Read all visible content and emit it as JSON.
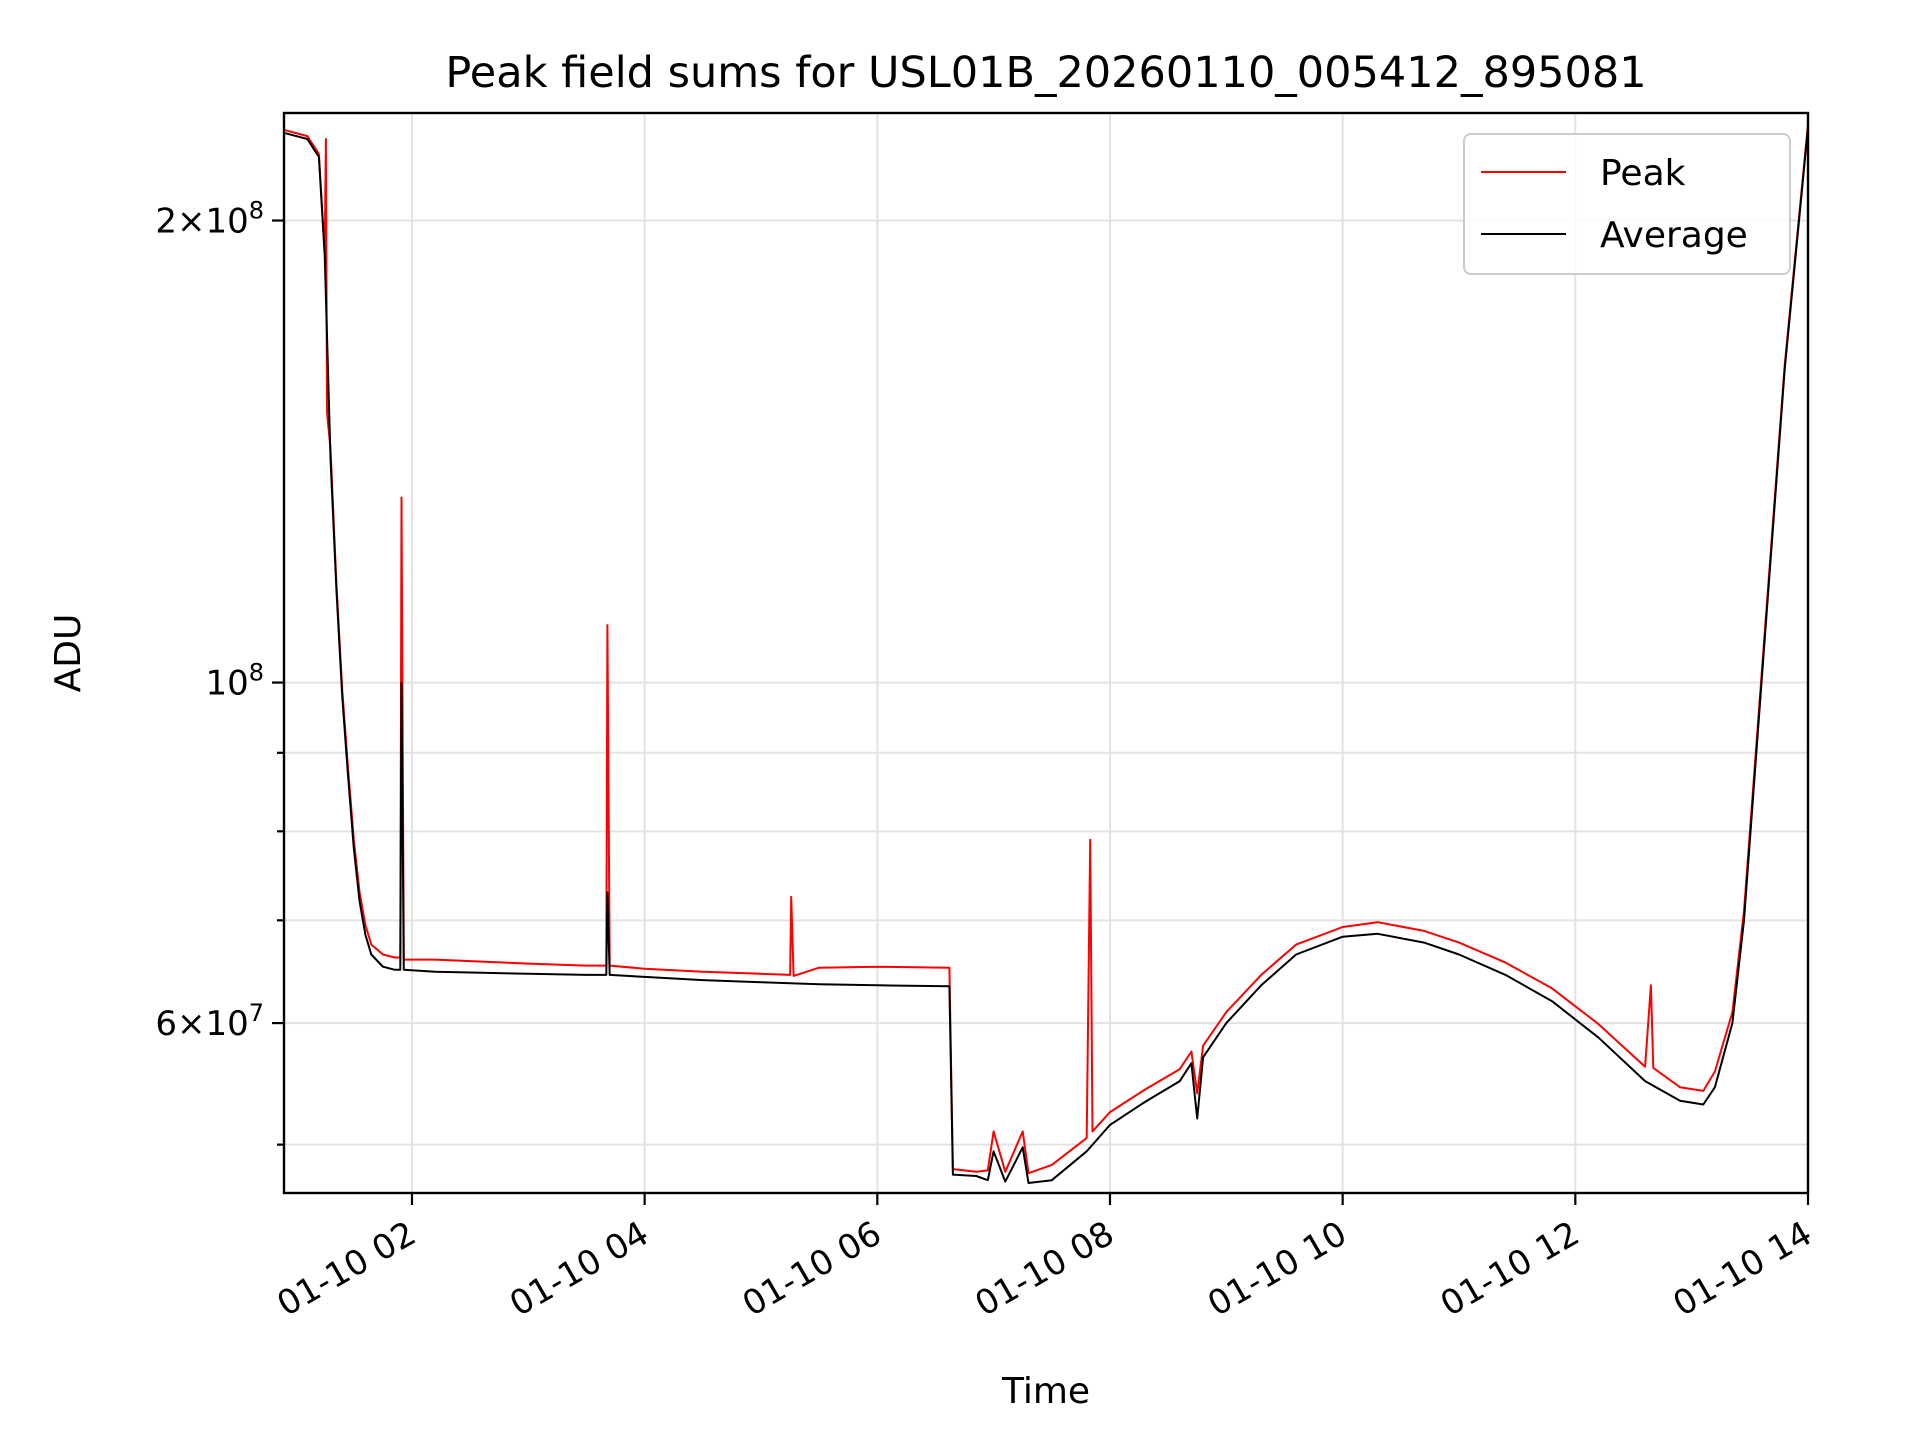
{
  "chart_data": {
    "type": "line",
    "title": "Peak field sums for USL01B_20260110_005412_895081",
    "xlabel": "Time",
    "ylabel": "ADU",
    "yscale": "log",
    "xlim": [
      0.9,
      14.0
    ],
    "ylim": [
      46500000,
      235000000
    ],
    "grid": true,
    "legend": "upper-right",
    "x_ticks": [
      {
        "value": 2,
        "label": "01-10 02"
      },
      {
        "value": 4,
        "label": "01-10 04"
      },
      {
        "value": 6,
        "label": "01-10 06"
      },
      {
        "value": 8,
        "label": "01-10 08"
      },
      {
        "value": 10,
        "label": "01-10 10"
      },
      {
        "value": 12,
        "label": "01-10 12"
      },
      {
        "value": 14,
        "label": "01-10 14"
      }
    ],
    "y_ticks": [
      {
        "value": 200000000,
        "mantissa": "2",
        "exponent": "8"
      },
      {
        "value": 100000000,
        "mantissa": "",
        "exponent": "8"
      },
      {
        "value": 60000000,
        "mantissa": "6",
        "exponent": "7"
      }
    ],
    "y_minor_ticks": [
      50000000,
      70000000,
      80000000,
      90000000
    ],
    "series": [
      {
        "name": "Average",
        "color": "#000000",
        "points": [
          [
            0.91,
            228000000
          ],
          [
            1.1,
            226000000
          ],
          [
            1.2,
            220000000
          ],
          [
            1.25,
            190000000
          ],
          [
            1.3,
            140000000
          ],
          [
            1.35,
            115000000
          ],
          [
            1.4,
            98000000
          ],
          [
            1.45,
            87000000
          ],
          [
            1.5,
            78000000
          ],
          [
            1.55,
            72000000
          ],
          [
            1.6,
            68500000
          ],
          [
            1.65,
            66500000
          ],
          [
            1.75,
            65300000
          ],
          [
            1.85,
            65000000
          ],
          [
            1.9,
            65000000
          ],
          [
            1.91,
            100000000
          ],
          [
            1.93,
            65000000
          ],
          [
            2.2,
            64800000
          ],
          [
            2.6,
            64700000
          ],
          [
            3.0,
            64600000
          ],
          [
            3.5,
            64500000
          ],
          [
            3.67,
            64500000
          ],
          [
            3.68,
            73000000
          ],
          [
            3.7,
            64500000
          ],
          [
            4.0,
            64300000
          ],
          [
            4.5,
            64000000
          ],
          [
            5.0,
            63800000
          ],
          [
            5.5,
            63600000
          ],
          [
            6.0,
            63500000
          ],
          [
            6.62,
            63400000
          ],
          [
            6.65,
            47800000
          ],
          [
            6.85,
            47700000
          ],
          [
            6.95,
            47400000
          ],
          [
            7.0,
            49500000
          ],
          [
            7.1,
            47300000
          ],
          [
            7.25,
            49800000
          ],
          [
            7.3,
            47200000
          ],
          [
            7.5,
            47400000
          ],
          [
            7.8,
            49500000
          ],
          [
            8.0,
            51500000
          ],
          [
            8.3,
            53300000
          ],
          [
            8.6,
            55000000
          ],
          [
            8.7,
            56500000
          ],
          [
            8.75,
            52000000
          ],
          [
            8.8,
            57000000
          ],
          [
            9.0,
            60000000
          ],
          [
            9.3,
            63500000
          ],
          [
            9.6,
            66500000
          ],
          [
            10.0,
            68300000
          ],
          [
            10.3,
            68600000
          ],
          [
            10.7,
            67700000
          ],
          [
            11.0,
            66500000
          ],
          [
            11.4,
            64500000
          ],
          [
            11.8,
            62000000
          ],
          [
            12.2,
            58700000
          ],
          [
            12.6,
            55000000
          ],
          [
            12.9,
            53400000
          ],
          [
            13.1,
            53100000
          ],
          [
            13.2,
            54500000
          ],
          [
            13.35,
            60000000
          ],
          [
            13.45,
            70000000
          ],
          [
            13.6,
            100000000
          ],
          [
            13.8,
            160000000
          ],
          [
            14.0,
            230000000
          ]
        ]
      },
      {
        "name": "Peak",
        "color": "#ff0000",
        "points": [
          [
            0.91,
            229000000
          ],
          [
            1.1,
            227000000
          ],
          [
            1.2,
            221000000
          ],
          [
            1.25,
            190000000
          ],
          [
            1.26,
            226000000
          ],
          [
            1.27,
            150000000
          ],
          [
            1.3,
            142000000
          ],
          [
            1.35,
            116000000
          ],
          [
            1.4,
            99000000
          ],
          [
            1.45,
            88000000
          ],
          [
            1.5,
            79000000
          ],
          [
            1.55,
            73000000
          ],
          [
            1.6,
            69500000
          ],
          [
            1.65,
            67500000
          ],
          [
            1.75,
            66500000
          ],
          [
            1.85,
            66200000
          ],
          [
            1.9,
            66200000
          ],
          [
            1.91,
            132000000
          ],
          [
            1.93,
            66000000
          ],
          [
            2.2,
            66000000
          ],
          [
            2.6,
            65800000
          ],
          [
            3.0,
            65600000
          ],
          [
            3.5,
            65400000
          ],
          [
            3.67,
            65400000
          ],
          [
            3.68,
            109000000
          ],
          [
            3.7,
            65400000
          ],
          [
            4.0,
            65100000
          ],
          [
            4.5,
            64800000
          ],
          [
            5.0,
            64600000
          ],
          [
            5.25,
            64500000
          ],
          [
            5.26,
            72500000
          ],
          [
            5.28,
            64400000
          ],
          [
            5.5,
            65200000
          ],
          [
            6.0,
            65300000
          ],
          [
            6.62,
            65200000
          ],
          [
            6.65,
            48200000
          ],
          [
            6.85,
            48000000
          ],
          [
            6.95,
            48100000
          ],
          [
            7.0,
            51000000
          ],
          [
            7.1,
            48000000
          ],
          [
            7.25,
            51000000
          ],
          [
            7.3,
            47900000
          ],
          [
            7.5,
            48500000
          ],
          [
            7.8,
            50500000
          ],
          [
            7.83,
            79000000
          ],
          [
            7.85,
            51000000
          ],
          [
            8.0,
            52500000
          ],
          [
            8.3,
            54300000
          ],
          [
            8.6,
            56000000
          ],
          [
            8.7,
            57500000
          ],
          [
            8.75,
            54000000
          ],
          [
            8.8,
            58000000
          ],
          [
            9.0,
            61000000
          ],
          [
            9.3,
            64500000
          ],
          [
            9.6,
            67500000
          ],
          [
            10.0,
            69300000
          ],
          [
            10.3,
            69800000
          ],
          [
            10.7,
            68900000
          ],
          [
            11.0,
            67700000
          ],
          [
            11.4,
            65700000
          ],
          [
            11.8,
            63200000
          ],
          [
            12.2,
            59900000
          ],
          [
            12.6,
            56200000
          ],
          [
            12.65,
            63500000
          ],
          [
            12.67,
            56100000
          ],
          [
            12.9,
            54500000
          ],
          [
            13.1,
            54200000
          ],
          [
            13.2,
            55800000
          ],
          [
            13.35,
            61000000
          ],
          [
            13.45,
            71000000
          ],
          [
            13.6,
            101000000
          ],
          [
            13.8,
            161000000
          ],
          [
            14.0,
            231000000
          ]
        ]
      }
    ]
  }
}
